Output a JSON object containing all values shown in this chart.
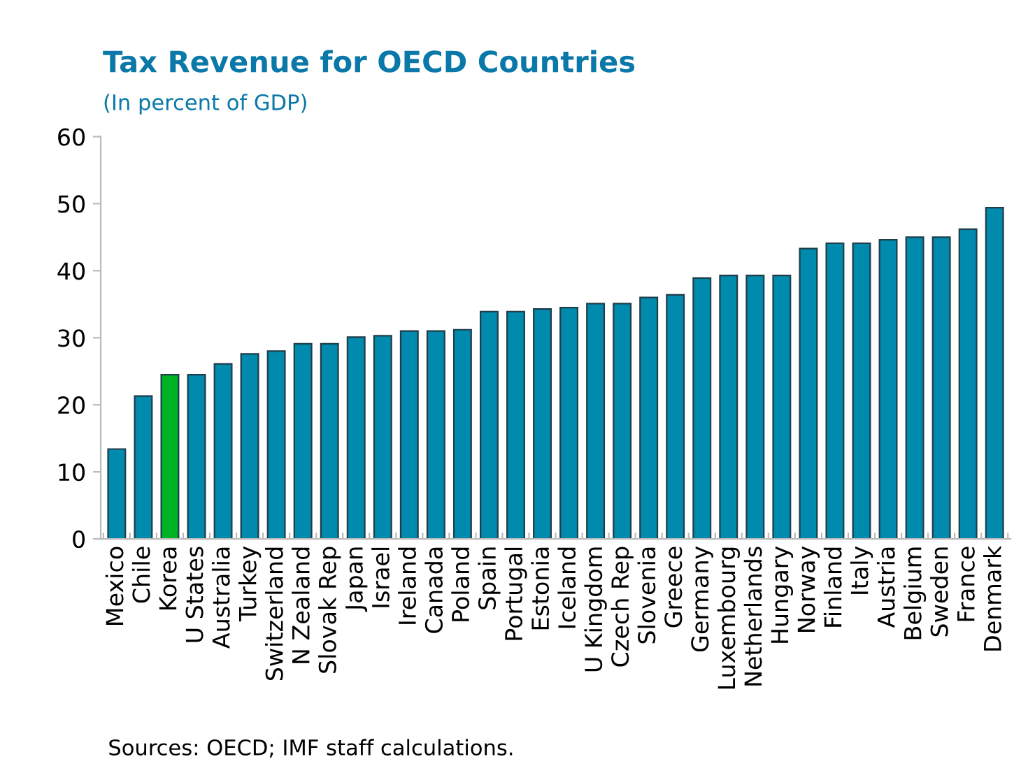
{
  "chart_data": {
    "type": "bar",
    "title": "Tax Revenue for OECD Countries",
    "subtitle": "(In percent of GDP)",
    "categories": [
      "Mexico",
      "Chile",
      "Korea",
      "U States",
      "Australia",
      "Turkey",
      "Switzerland",
      "N Zealand",
      "Slovak Rep",
      "Japan",
      "Israel",
      "Ireland",
      "Canada",
      "Poland",
      "Spain",
      "Portugal",
      "Estonia",
      "Iceland",
      "U Kingdom",
      "Czech Rep",
      "Slovenia",
      "Greece",
      "Germany",
      "Luxembourg",
      "Netherlands",
      "Hungary",
      "Norway",
      "Finland",
      "Italy",
      "Austria",
      "Belgium",
      "Sweden",
      "France",
      "Denmark"
    ],
    "values": [
      13.4,
      21.3,
      24.5,
      24.5,
      26.1,
      27.6,
      28.0,
      29.1,
      29.1,
      30.1,
      30.3,
      31.0,
      31.0,
      31.2,
      33.9,
      33.9,
      34.3,
      34.5,
      35.1,
      35.1,
      36.0,
      36.4,
      38.9,
      39.3,
      39.3,
      39.3,
      43.3,
      44.1,
      44.1,
      44.6,
      45.0,
      45.0,
      46.2,
      49.4
    ],
    "colors": [
      "#008aad",
      "#008aad",
      "#00b226",
      "#008aad",
      "#008aad",
      "#008aad",
      "#008aad",
      "#008aad",
      "#008aad",
      "#008aad",
      "#008aad",
      "#008aad",
      "#008aad",
      "#008aad",
      "#008aad",
      "#008aad",
      "#008aad",
      "#008aad",
      "#008aad",
      "#008aad",
      "#008aad",
      "#008aad",
      "#008aad",
      "#008aad",
      "#008aad",
      "#008aad",
      "#008aad",
      "#008aad",
      "#008aad",
      "#008aad",
      "#008aad",
      "#008aad",
      "#008aad",
      "#008aad"
    ],
    "ylim": [
      0,
      60
    ],
    "yticks": [
      0,
      10,
      20,
      30,
      40,
      50,
      60
    ],
    "grid": false,
    "legend": false,
    "annotations": [
      "Sources: OECD; IMF staff calculations."
    ]
  }
}
